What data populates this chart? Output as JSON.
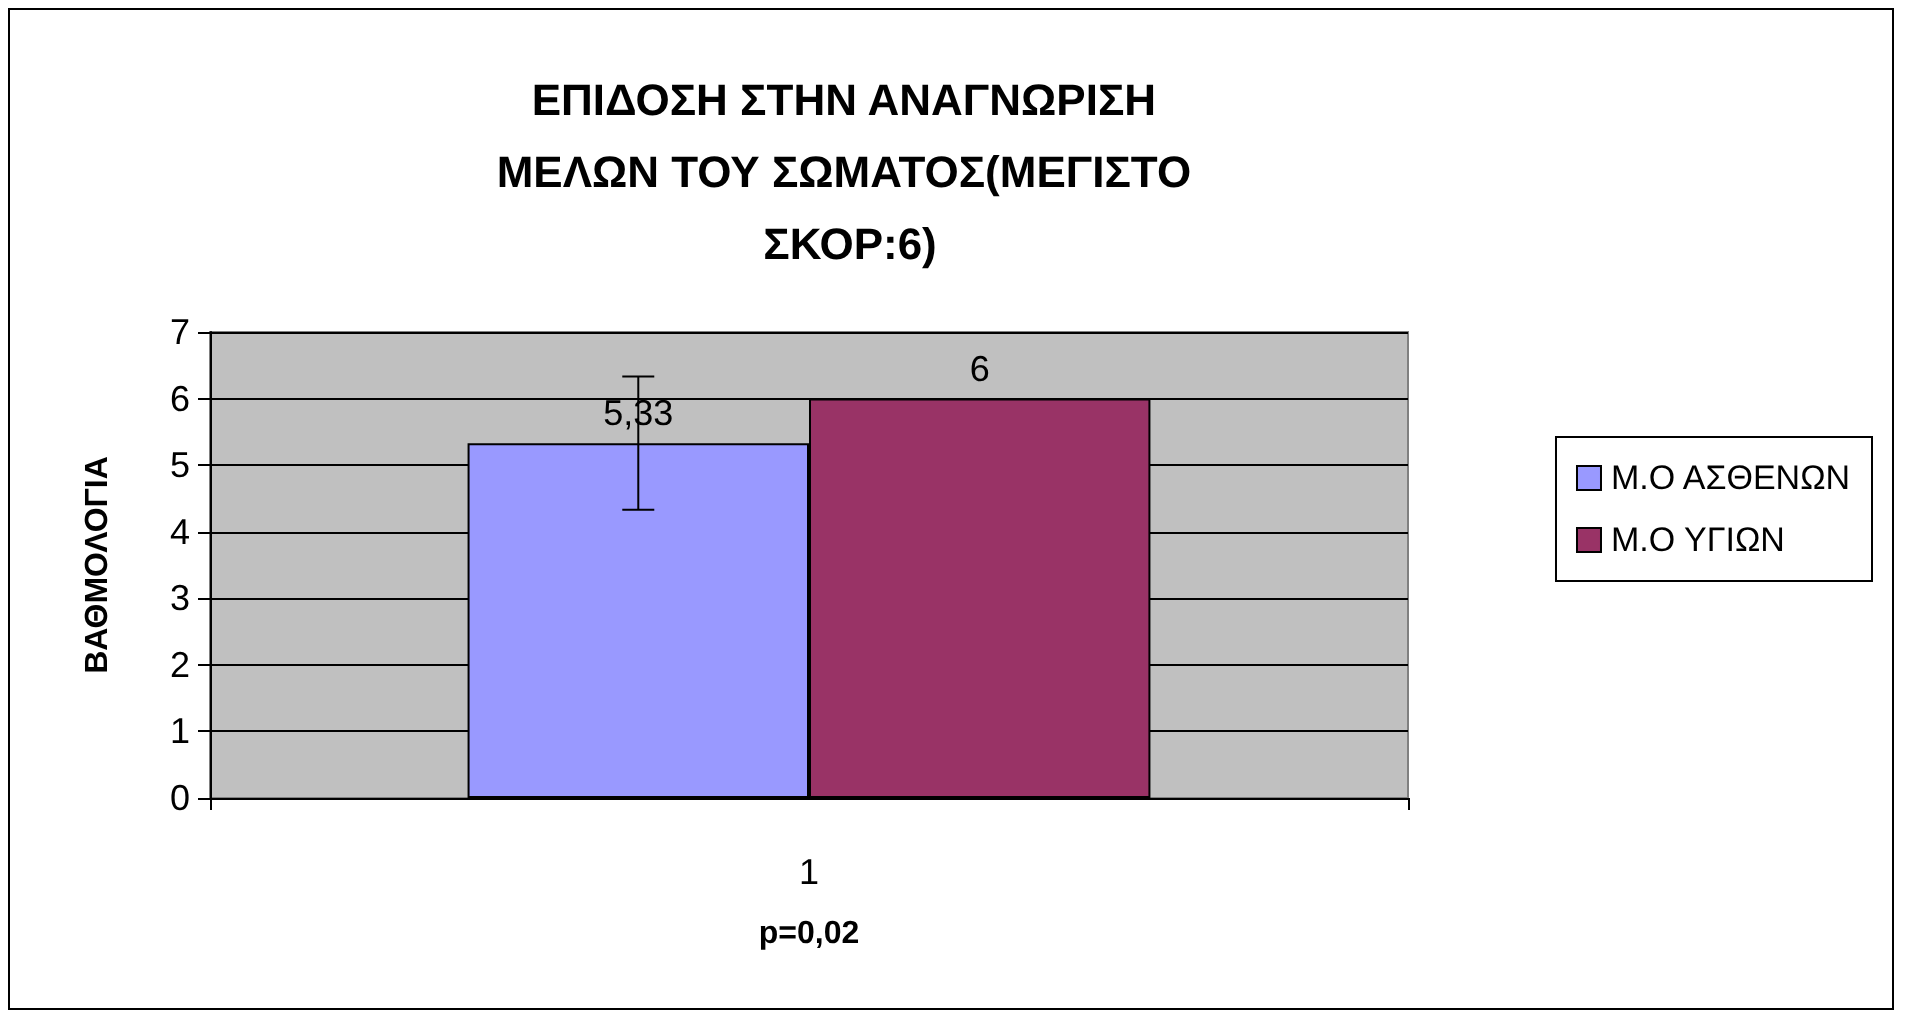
{
  "chart_data": {
    "type": "bar",
    "title": "ΕΠΙΔΟΣΗ ΣΤΗΝ ΑΝΑΓΝΩΡΙΣΗ ΜΕΛΩΝ ΤΟΥ ΣΩΜΑΤΟΣ(ΜΕΓΙΣΤΟ ΣΚΟΡ:6)",
    "xlabel": "p=0,02",
    "ylabel": "ΒΑΘΜΟΛΟΓΙΑ",
    "categories": [
      "1"
    ],
    "series": [
      {
        "name": "Μ.Ο ΑΣΘΕΝΩΝ",
        "color": "#9999ff",
        "values": [
          5.33
        ],
        "errors": [
          1
        ],
        "value_labels": [
          "5,33"
        ]
      },
      {
        "name": "Μ.Ο ΥΓΙΩΝ",
        "color": "#993366",
        "values": [
          6
        ],
        "value_labels": [
          "6"
        ]
      }
    ],
    "ylim": [
      0,
      7
    ],
    "yticks": [
      0,
      1,
      2,
      3,
      4,
      5,
      6,
      7
    ],
    "grid": "y",
    "legend": "right"
  }
}
